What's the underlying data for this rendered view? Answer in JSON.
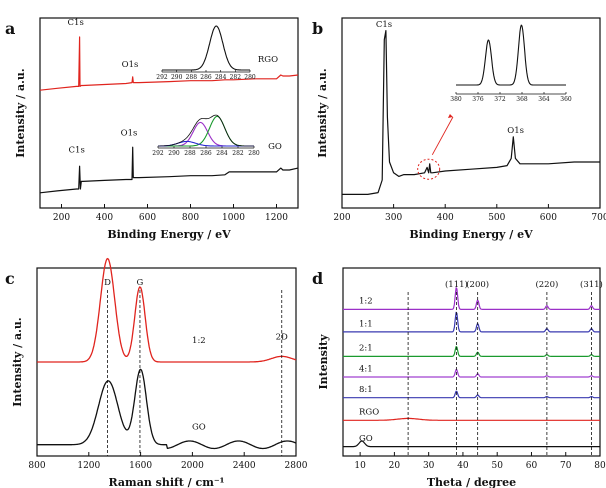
{
  "chart_data": [
    {
      "panel": "a",
      "type": "line",
      "xlabel": "Binding Energy / eV",
      "ylabel": "Intensity / a.u.",
      "xlim": [
        100,
        1300
      ],
      "xticks": [
        200,
        400,
        600,
        800,
        1000,
        1200
      ],
      "yticks_shown": false,
      "series": [
        {
          "name": "RGO",
          "color": "#e0241e",
          "x": [
            100,
            180,
            270,
            280,
            284,
            286,
            292,
            300,
            400,
            500,
            528,
            531,
            534,
            560,
            700,
            800,
            900,
            960,
            980,
            1000,
            1100,
            1200,
            1220,
            1230,
            1260,
            1300
          ],
          "y": [
            0.62,
            0.63,
            0.64,
            0.64,
            0.9,
            0.64,
            0.645,
            0.645,
            0.65,
            0.655,
            0.66,
            0.69,
            0.66,
            0.66,
            0.665,
            0.67,
            0.67,
            0.675,
            0.675,
            0.675,
            0.68,
            0.68,
            0.7,
            0.695,
            0.695,
            0.7
          ]
        },
        {
          "name": "GO",
          "color": "#111111",
          "x": [
            100,
            180,
            270,
            280,
            284,
            288,
            292,
            300,
            400,
            500,
            528,
            531,
            534,
            560,
            700,
            800,
            900,
            960,
            980,
            1000,
            1100,
            1200,
            1220,
            1230,
            1260,
            1300
          ],
          "y": [
            0.08,
            0.09,
            0.1,
            0.1,
            0.22,
            0.1,
            0.14,
            0.14,
            0.145,
            0.15,
            0.15,
            0.32,
            0.16,
            0.16,
            0.165,
            0.17,
            0.17,
            0.175,
            0.19,
            0.19,
            0.19,
            0.19,
            0.21,
            0.2,
            0.2,
            0.21
          ]
        }
      ],
      "annotations": [
        {
          "text": "C1s",
          "x": 284,
          "series": "RGO"
        },
        {
          "text": "O1s",
          "x": 531,
          "series": "RGO"
        },
        {
          "text": "RGO"
        },
        {
          "text": "C1s",
          "x": 284,
          "series": "GO"
        },
        {
          "text": "O1s",
          "x": 531,
          "series": "GO"
        },
        {
          "text": "GO"
        }
      ],
      "insets": [
        {
          "for": "RGO",
          "xlim": [
            292,
            280
          ],
          "xticks": [
            292,
            290,
            288,
            286,
            284,
            282,
            280
          ],
          "peaks": [
            {
              "center": 284.6,
              "height": 1.0,
              "width": 0.9
            }
          ]
        },
        {
          "for": "GO",
          "xlim": [
            292,
            280
          ],
          "xticks": [
            292,
            290,
            288,
            286,
            284,
            282,
            280
          ],
          "components": [
            {
              "color": "#9b30c8",
              "center": 286.7,
              "height": 0.62,
              "width": 0.9
            },
            {
              "color": "#1a9a2e",
              "center": 284.6,
              "height": 0.78,
              "width": 0.95
            },
            {
              "color": "#2a2ad0",
              "center": 288.4,
              "height": 0.12,
              "width": 1.1
            }
          ]
        }
      ]
    },
    {
      "panel": "b",
      "type": "line",
      "xlabel": "Binding Energy / eV",
      "ylabel": "Intensity / a.u.",
      "xlim": [
        200,
        700
      ],
      "xticks": [
        200,
        300,
        400,
        500,
        600,
        700
      ],
      "yticks_shown": false,
      "series": [
        {
          "color": "#111111",
          "x": [
            200,
            250,
            270,
            278,
            282,
            285,
            288,
            292,
            300,
            310,
            320,
            340,
            360,
            365,
            368,
            370,
            372,
            375,
            400,
            450,
            500,
            520,
            528,
            532,
            536,
            545,
            600,
            650,
            700
          ],
          "y": [
            0.02,
            0.02,
            0.03,
            0.1,
            0.88,
            0.93,
            0.45,
            0.2,
            0.14,
            0.12,
            0.13,
            0.13,
            0.14,
            0.17,
            0.14,
            0.19,
            0.14,
            0.14,
            0.15,
            0.16,
            0.17,
            0.18,
            0.22,
            0.34,
            0.22,
            0.19,
            0.19,
            0.2,
            0.2
          ]
        }
      ],
      "annotations": [
        {
          "text": "C1s",
          "x": 285
        },
        {
          "text": "O1s",
          "x": 532
        }
      ],
      "inset": {
        "xlim": [
          380,
          360
        ],
        "xticks": [
          380,
          376,
          372,
          368,
          364,
          360
        ],
        "peaks": [
          {
            "center": 374.1,
            "height": 0.75,
            "width": 0.55
          },
          {
            "center": 368.1,
            "height": 1.0,
            "width": 0.55
          }
        ]
      }
    },
    {
      "panel": "c",
      "type": "line",
      "xlabel": "Raman shift / cm⁻¹",
      "ylabel": "Intensity / a.u.",
      "xlim": [
        800,
        2800
      ],
      "xticks": [
        800,
        1200,
        1600,
        2000,
        2400,
        2800
      ],
      "yticks_shown": false,
      "series": [
        {
          "name": "1:2",
          "color": "#e0241e",
          "peaks": [
            {
              "center": 1345,
              "height": 0.55,
              "width": 55
            },
            {
              "center": 1595,
              "height": 0.4,
              "width": 40
            },
            {
              "center": 2690,
              "height": 0.03,
              "width": 80
            }
          ],
          "baseline": 0.5
        },
        {
          "name": "GO",
          "color": "#111111",
          "peaks": [
            {
              "center": 1350,
              "height": 0.34,
              "width": 75
            },
            {
              "center": 1600,
              "height": 0.4,
              "width": 45
            }
          ],
          "baseline": 0.06
        }
      ],
      "annotations": [
        {
          "text": "D",
          "x": 1345
        },
        {
          "text": "G",
          "x": 1595
        },
        {
          "text": "2D",
          "x": 2690
        },
        {
          "text": "1:2"
        },
        {
          "text": "GO"
        }
      ],
      "reference_lines_x": [
        1345,
        1595,
        2690
      ]
    },
    {
      "panel": "d",
      "type": "line",
      "xlabel": "Theta / degree",
      "ylabel": "Intensity",
      "xlim": [
        5,
        80
      ],
      "xticks": [
        10,
        20,
        30,
        40,
        50,
        60,
        70,
        80
      ],
      "yticks_shown": false,
      "series": [
        {
          "name": "1:2",
          "color": "#9b30c8",
          "offset": 0.78,
          "peak_scale": 1.0
        },
        {
          "name": "1:1",
          "color": "#3a3ab0",
          "offset": 0.66,
          "peak_scale": 0.9
        },
        {
          "name": "2:1",
          "color": "#1a9a2e",
          "offset": 0.53,
          "peak_scale": 0.45
        },
        {
          "name": "4:1",
          "color": "#a040d0",
          "offset": 0.42,
          "peak_scale": 0.35
        },
        {
          "name": "8:1",
          "color": "#3a3ab0",
          "offset": 0.31,
          "peak_scale": 0.3
        },
        {
          "name": "RGO",
          "color": "#e0241e",
          "offset": 0.19,
          "peak_scale": 0.0
        },
        {
          "name": "GO",
          "color": "#111111",
          "offset": 0.05,
          "peak_scale": 0.0
        }
      ],
      "peak_positions": [
        38.1,
        44.3,
        64.5,
        77.5
      ],
      "peak_heights": [
        0.12,
        0.05,
        0.02,
        0.02
      ],
      "annotations": [
        {
          "text": "(111)",
          "x": 38.1
        },
        {
          "text": "(200)",
          "x": 44.3
        },
        {
          "text": "(220)",
          "x": 64.5
        },
        {
          "text": "(311)",
          "x": 77.5
        }
      ],
      "reference_lines_x": [
        24,
        38.1,
        44.3,
        64.5,
        77.5
      ]
    }
  ]
}
